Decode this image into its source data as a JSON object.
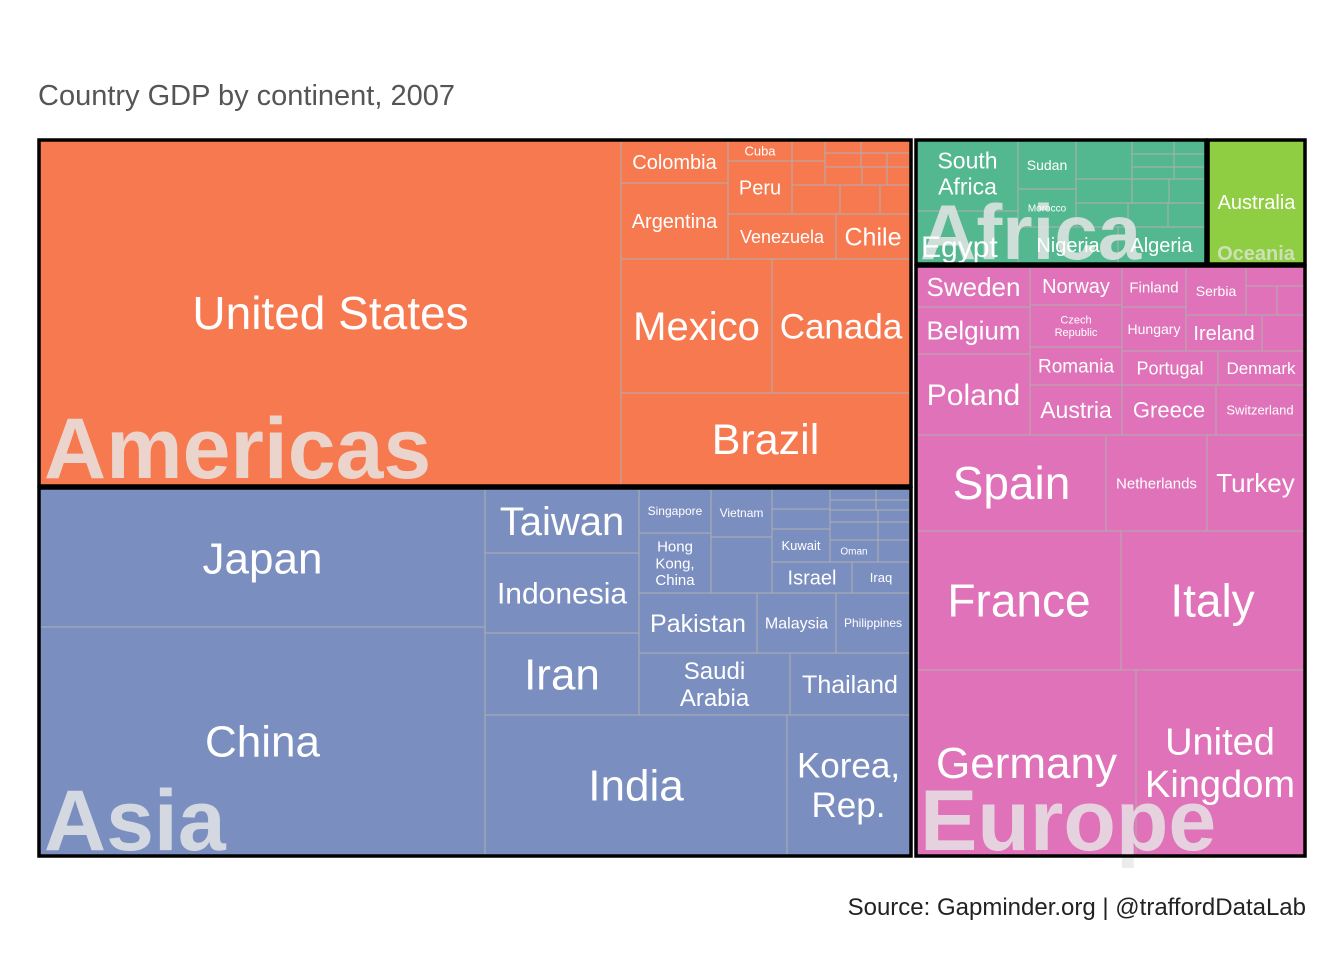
{
  "title": "Country GDP by continent, 2007",
  "source": "Source: Gapminder.org  |  @traffordDataLab",
  "colors": {
    "Americas": "#f7794f",
    "Asia": "#7b8ec0",
    "Africa": "#53b890",
    "Europe": "#df72b8",
    "Oceania": "#8fcd43",
    "tile_border": "#b0b0b0",
    "continent_border": "#000000",
    "tile_label": "#ffffff",
    "continent_label": "#e8e8e8"
  },
  "chart_data": {
    "type": "treemap",
    "title": "Country GDP by continent, 2007",
    "value": "GDP (estimated relative area)",
    "continents": [
      {
        "name": "Americas",
        "countries": [
          {
            "name": "United States",
            "value": 1336
          },
          {
            "name": "Mexico",
            "value": 135
          },
          {
            "name": "Canada",
            "value": 115
          },
          {
            "name": "Brazil",
            "value": 161
          },
          {
            "name": "Colombia",
            "value": 25
          },
          {
            "name": "Argentina",
            "value": 49
          },
          {
            "name": "Venezuela",
            "value": 24
          },
          {
            "name": "Chile",
            "value": 17
          },
          {
            "name": "Peru",
            "value": 16
          },
          {
            "name": "Cuba",
            "value": 6
          },
          {
            "name": "",
            "value": 33
          }
        ]
      },
      {
        "name": "Asia",
        "countries": [
          {
            "name": "China",
            "value": 701
          },
          {
            "name": "Japan",
            "value": 380
          },
          {
            "name": "India",
            "value": 266
          },
          {
            "name": "Korea, Rep.",
            "value": 79
          },
          {
            "name": "Iran",
            "value": 64
          },
          {
            "name": "Taiwan",
            "value": 41
          },
          {
            "name": "Indonesia",
            "value": 49
          },
          {
            "name": "Saudi Arabia",
            "value": 37
          },
          {
            "name": "Thailand",
            "value": 29
          },
          {
            "name": "Pakistan",
            "value": 24
          },
          {
            "name": "Malaysia",
            "value": 14
          },
          {
            "name": "Philippines",
            "value": 14
          },
          {
            "name": "Israel",
            "value": 10
          },
          {
            "name": "Hong Kong, China",
            "value": 14
          },
          {
            "name": "Singapore",
            "value": 9
          },
          {
            "name": "Vietnam",
            "value": 12
          },
          {
            "name": "Kuwait",
            "value": 8
          },
          {
            "name": "Iraq",
            "value": 7
          },
          {
            "name": "Oman",
            "value": 6
          },
          {
            "name": "",
            "value": 36
          }
        ]
      },
      {
        "name": "Africa",
        "countries": [
          {
            "name": "South Africa",
            "value": 16
          },
          {
            "name": "Egypt",
            "value": 15
          },
          {
            "name": "Nigeria",
            "value": 13
          },
          {
            "name": "Algeria",
            "value": 11
          },
          {
            "name": "Sudan",
            "value": 7
          },
          {
            "name": "Morocco",
            "value": 5
          },
          {
            "name": "",
            "value": 37
          }
        ]
      },
      {
        "name": "Europe",
        "countries": [
          {
            "name": "Germany",
            "value": 211
          },
          {
            "name": "United Kingdom",
            "value": 171
          },
          {
            "name": "France",
            "value": 193
          },
          {
            "name": "Italy",
            "value": 168
          },
          {
            "name": "Spain",
            "value": 110
          },
          {
            "name": "Netherlands",
            "value": 58
          },
          {
            "name": "Turkey",
            "value": 56
          },
          {
            "name": "Poland",
            "value": 45
          },
          {
            "name": "Belgium",
            "value": 32
          },
          {
            "name": "Sweden",
            "value": 25
          },
          {
            "name": "Austria",
            "value": 27
          },
          {
            "name": "Greece",
            "value": 22
          },
          {
            "name": "Switzerland",
            "value": 20
          },
          {
            "name": "Norway",
            "value": 14
          },
          {
            "name": "Czech Republic",
            "value": 13
          },
          {
            "name": "Romania",
            "value": 17
          },
          {
            "name": "Portugal",
            "value": 13
          },
          {
            "name": "Denmark",
            "value": 12
          },
          {
            "name": "Finland",
            "value": 7
          },
          {
            "name": "Hungary",
            "value": 9
          },
          {
            "name": "Ireland",
            "value": 10
          },
          {
            "name": "Serbia",
            "value": 4
          },
          {
            "name": "",
            "value": 18
          }
        ]
      },
      {
        "name": "Oceania",
        "countries": [
          {
            "name": "Australia",
            "value": 86
          }
        ]
      }
    ]
  }
}
